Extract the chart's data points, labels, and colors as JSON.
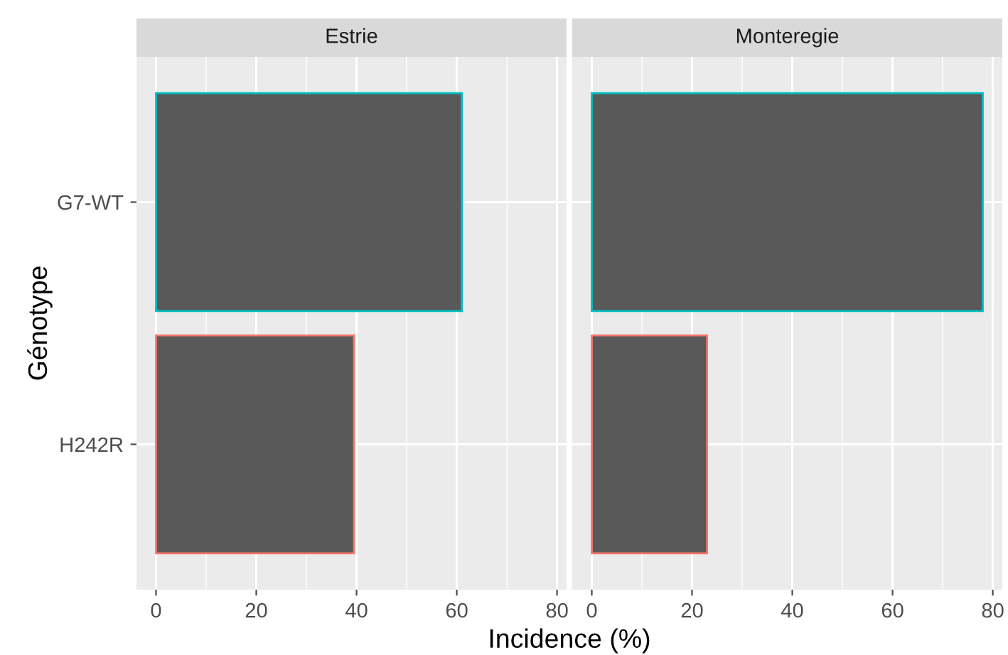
{
  "chart_data": [
    {
      "type": "bar",
      "orientation": "horizontal",
      "title": "Estrie",
      "ylabel": "Génotype",
      "xlabel": "Incidence (%)",
      "categories": [
        "G7-WT",
        "H242R"
      ],
      "values": [
        61,
        39.5
      ],
      "colors": [
        "#595959",
        "#595959"
      ],
      "xlim": [
        -3.9,
        81.9
      ],
      "xticks": [
        0,
        20,
        40,
        60,
        80
      ],
      "grid": true
    },
    {
      "type": "bar",
      "orientation": "horizontal",
      "title": "Monteregie",
      "categories": [
        null,
        null
      ],
      "values": [
        78,
        23
      ],
      "colors": [
        "#595959",
        "#595959"
      ],
      "xlim": [
        -3.9,
        81.9
      ],
      "xticks": [
        0,
        20,
        40,
        60,
        80
      ],
      "grid": true,
      "tick_labels": "x"
    }
  ]
}
